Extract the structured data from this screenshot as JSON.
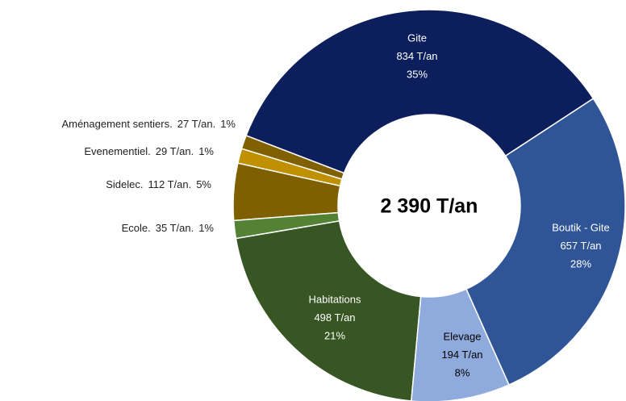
{
  "chart_data": {
    "type": "donut",
    "center_label": "2 390 T/an",
    "categories": [
      "Gite",
      "Boutik - Gite",
      "Elevage",
      "Habitations",
      "Ecole.",
      "Sidelec.",
      "Evenementiel.",
      "Aménagement sentiers."
    ],
    "values": [
      834,
      657,
      194,
      498,
      35,
      112,
      29,
      27
    ],
    "value_labels": [
      "834 T/an",
      "657 T/an",
      "194 T/an",
      "498 T/an",
      "35 T/an.",
      "112 T/an.",
      "29 T/an.",
      "27 T/an."
    ],
    "percents": [
      35,
      28,
      8,
      21,
      1,
      5,
      1,
      1
    ],
    "percent_labels": [
      "35%",
      "28%",
      "8%",
      "21%",
      "1%",
      "5%",
      "1%",
      "1%"
    ],
    "colors": [
      "#0c1f5c",
      "#2f5597",
      "#8faadc",
      "#375623",
      "#548235",
      "#7f6000",
      "#bf9000",
      "#806000"
    ]
  }
}
